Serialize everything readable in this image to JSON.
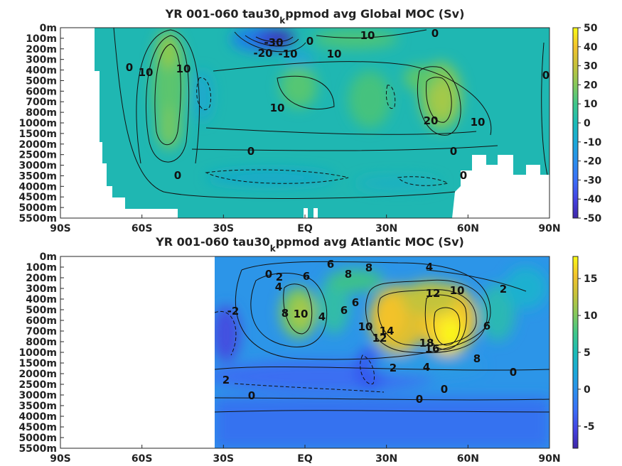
{
  "chart_data": [
    {
      "type": "heatmap",
      "title_pre": "YR 001-060 tau30",
      "title_sub": "k",
      "title_post": "ppmod avg  Global MOC (Sv)",
      "x_ticks": [
        "90S",
        "60S",
        "30S",
        "EQ",
        "30N",
        "60N",
        "90N"
      ],
      "x_range": [
        -90,
        90
      ],
      "y_ticks": [
        "0m",
        "100m",
        "200m",
        "300m",
        "400m",
        "500m",
        "600m",
        "700m",
        "800m",
        "1000m",
        "1500m",
        "2000m",
        "2500m",
        "3000m",
        "3500m",
        "4000m",
        "4500m",
        "5000m",
        "5500m"
      ],
      "colorbar_ticks": [
        "50",
        "40",
        "30",
        "20",
        "10",
        "0",
        "-10",
        "-20",
        "-30",
        "-40",
        "-50"
      ],
      "colorbar_range": [
        -50,
        50
      ],
      "contour_labels": [
        "-30",
        "-20",
        "-10",
        "10",
        "0",
        "10",
        "0",
        "10",
        "10",
        "10",
        "20",
        "10",
        "0",
        "0",
        "0",
        "0",
        "0",
        "0"
      ],
      "features": [
        {
          "lat": -53,
          "depth_level": 3.5,
          "value": 28
        },
        {
          "lat": -50,
          "depth_level": 9.5,
          "value": 22
        },
        {
          "lat": -22,
          "depth_level": 1.0,
          "value": -35
        },
        {
          "lat": -10,
          "depth_level": 1.5,
          "value": -25
        },
        {
          "lat": 2,
          "depth_level": 1.0,
          "value": 12
        },
        {
          "lat": -8,
          "depth_level": 6.0,
          "value": 14
        },
        {
          "lat": 47,
          "depth_level": 6.5,
          "value": 24
        },
        {
          "lat": 28,
          "depth_level": 7.0,
          "value": 10
        },
        {
          "lat": 0,
          "depth_level": 15.5,
          "value": -3
        }
      ]
    },
    {
      "type": "heatmap",
      "title_pre": "YR 001-060 tau30",
      "title_sub": "k",
      "title_post": "ppmod avg  Atlantic MOC (Sv)",
      "x_ticks": [
        "90S",
        "60S",
        "30S",
        "EQ",
        "30N",
        "60N",
        "90N"
      ],
      "x_range": [
        -90,
        90
      ],
      "y_ticks": [
        "0m",
        "100m",
        "200m",
        "300m",
        "400m",
        "500m",
        "600m",
        "700m",
        "800m",
        "1000m",
        "1500m",
        "2000m",
        "2500m",
        "3000m",
        "3500m",
        "4000m",
        "4500m",
        "5000m",
        "5500m"
      ],
      "colorbar_ticks": [
        "15",
        "10",
        "5",
        "0",
        "-5"
      ],
      "colorbar_range": [
        -8,
        18
      ],
      "contour_labels": [
        "0",
        "2",
        "4",
        "6",
        "6",
        "8",
        "8",
        "4",
        "12",
        "10",
        "2",
        "-2",
        "8",
        "10",
        "4",
        "6",
        "6",
        "10",
        "14",
        "12",
        "18",
        "16",
        "6",
        "8",
        "2",
        "4",
        "0",
        "2",
        "0",
        "0",
        "0"
      ],
      "features": [
        {
          "lat": 48,
          "depth_level": 7.5,
          "value": 18
        },
        {
          "lat": 30,
          "depth_level": 5.5,
          "value": 14
        },
        {
          "lat": -10,
          "depth_level": 4.5,
          "value": 10
        },
        {
          "lat": 10,
          "depth_level": 3.5,
          "value": 7
        },
        {
          "lat": -28,
          "depth_level": 7.0,
          "value": -5
        },
        {
          "lat": 20,
          "depth_level": 12.5,
          "value": -1.5
        },
        {
          "lat": 80,
          "depth_level": 4.0,
          "value": 1.5
        }
      ]
    }
  ]
}
